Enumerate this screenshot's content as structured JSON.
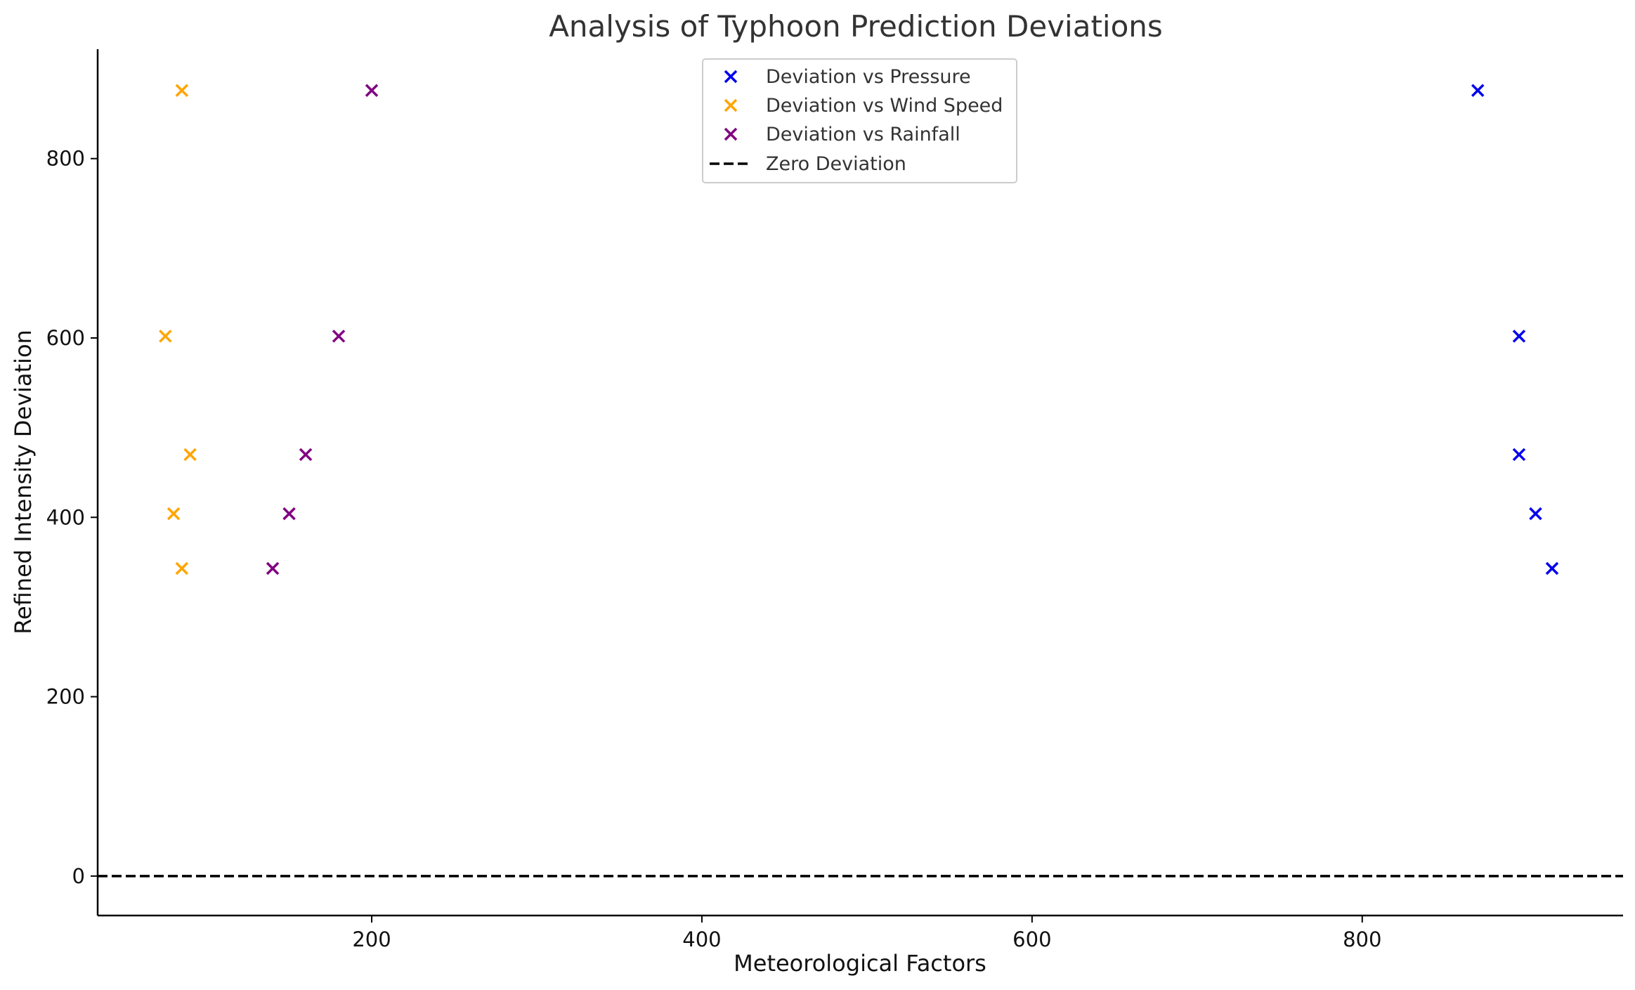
{
  "chart_data": {
    "type": "scatter",
    "title": "Analysis of Typhoon Prediction Deviations",
    "xlabel": "Meteorological Factors",
    "ylabel": "Refined Intensity Deviation",
    "xlim": [
      34,
      958
    ],
    "ylim": [
      -44,
      922
    ],
    "x_ticks": [
      200,
      400,
      600,
      800
    ],
    "y_ticks": [
      0,
      200,
      400,
      600,
      800
    ],
    "grid": false,
    "legend_position": "top-center",
    "marker": "x",
    "series": [
      {
        "name": "Deviation vs Pressure",
        "color": "#0000ee",
        "points": [
          {
            "x": 870,
            "y": 876
          },
          {
            "x": 895,
            "y": 602
          },
          {
            "x": 895,
            "y": 470
          },
          {
            "x": 905,
            "y": 404
          },
          {
            "x": 915,
            "y": 343
          }
        ]
      },
      {
        "name": "Deviation vs Wind Speed",
        "color": "#ffa500",
        "points": [
          {
            "x": 85,
            "y": 876
          },
          {
            "x": 75,
            "y": 602
          },
          {
            "x": 90,
            "y": 470
          },
          {
            "x": 80,
            "y": 404
          },
          {
            "x": 85,
            "y": 343
          }
        ]
      },
      {
        "name": "Deviation vs Rainfall",
        "color": "#800080",
        "points": [
          {
            "x": 200,
            "y": 876
          },
          {
            "x": 180,
            "y": 602
          },
          {
            "x": 160,
            "y": 470
          },
          {
            "x": 150,
            "y": 404
          },
          {
            "x": 140,
            "y": 343
          }
        ]
      }
    ],
    "reference_line": {
      "name": "Zero Deviation",
      "y": 0,
      "style": "dashed",
      "color": "#000000"
    }
  }
}
